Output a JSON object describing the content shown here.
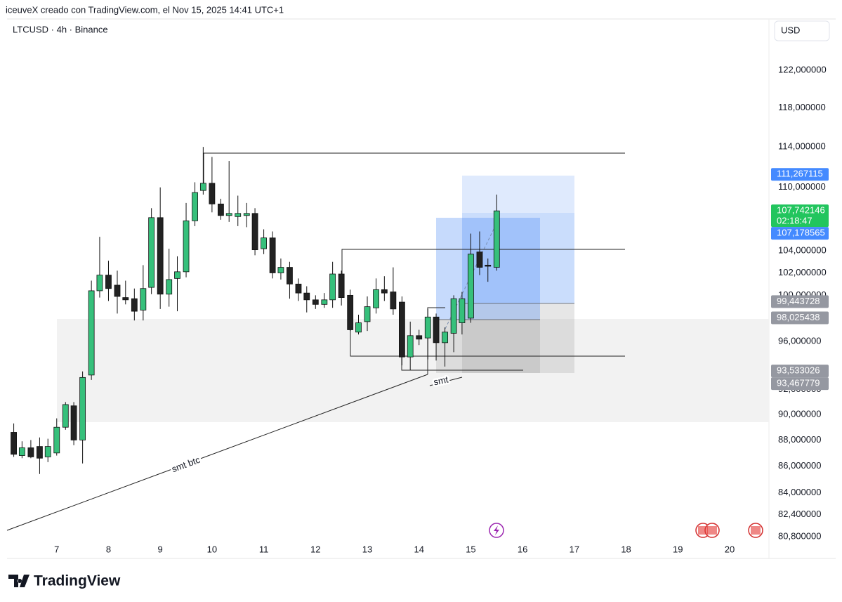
{
  "header": "iceuveX creado con TradingView.com, el Nov 15, 2025 14:41 UTC+1",
  "brand": "TradingView",
  "chart_data": {
    "type": "candlestick",
    "title": "LTCUSD · 4h · Binance",
    "currency": "USD",
    "up_color": "#36c07b",
    "down_color": "#222222",
    "log_scale": true,
    "grid": false,
    "x": [
      6.17,
      6.33,
      6.5,
      6.67,
      6.83,
      7,
      7.17,
      7.33,
      7.5,
      7.67,
      7.83,
      8,
      8.17,
      8.33,
      8.5,
      8.67,
      8.83,
      9,
      9.17,
      9.33,
      9.5,
      9.67,
      9.83,
      10,
      10.17,
      10.33,
      10.5,
      10.67,
      10.83,
      11,
      11.17,
      11.33,
      11.5,
      11.67,
      11.83,
      12,
      12.17,
      12.33,
      12.5,
      12.67,
      12.83,
      13,
      13.17,
      13.33,
      13.5,
      13.67,
      13.83,
      14,
      14.17,
      14.33,
      14.5,
      14.67,
      14.83,
      15,
      15.17,
      15.33,
      15.5
    ],
    "open": [
      88.6,
      86.8,
      87.4,
      87.5,
      86.7,
      87.0,
      89.0,
      90.7,
      88.0,
      93.2,
      100.4,
      101.8,
      100.9,
      99.8,
      99.7,
      98.7,
      100.7,
      107.1,
      100.1,
      101.5,
      102.1,
      106.8,
      109.7,
      110.4,
      108.4,
      107.3,
      107.2,
      107.3,
      107.5,
      104.2,
      105.2,
      102.0,
      102.5,
      101.0,
      100.2,
      99.6,
      99.2,
      99.6,
      101.9,
      100.0,
      96.8,
      97.7,
      98.9,
      100.5,
      100.3,
      99.4,
      94.7,
      96.5,
      96.3,
      98.1,
      95.9,
      96.7,
      97.6,
      98.0,
      103.9,
      102.7,
      102.5
    ],
    "high": [
      89.3,
      87.9,
      88.0,
      88.2,
      88.1,
      89.7,
      91.0,
      91.0,
      93.5,
      101.3,
      105.3,
      103.1,
      102.2,
      101.3,
      100.6,
      102.7,
      108.0,
      110.0,
      104.2,
      103.5,
      108.5,
      110.5,
      114.0,
      113.0,
      108.9,
      112.6,
      109.2,
      108.5,
      108.0,
      106.0,
      105.8,
      103.3,
      103.0,
      101.5,
      100.8,
      100.0,
      100.2,
      103.0,
      102.2,
      100.5,
      98.3,
      99.9,
      101.5,
      101.7,
      102.5,
      99.9,
      97.7,
      97.0,
      98.8,
      98.4,
      97.2,
      100.0,
      100.3,
      105.6,
      105.8,
      103.3,
      109.3
    ],
    "low": [
      86.7,
      86.6,
      86.6,
      85.4,
      86.3,
      86.8,
      88.8,
      87.6,
      86.2,
      92.8,
      99.8,
      99.5,
      98.4,
      99.2,
      97.8,
      97.8,
      100.1,
      98.8,
      99.0,
      98.6,
      101.6,
      106.3,
      109.3,
      107.6,
      106.9,
      106.7,
      106.3,
      106.2,
      103.6,
      103.7,
      101.5,
      101.4,
      99.7,
      99.5,
      98.5,
      98.8,
      98.9,
      98.9,
      99.1,
      96.9,
      96.6,
      96.9,
      98.4,
      99.5,
      98.3,
      94.0,
      93.6,
      95.7,
      94.5,
      94.4,
      93.9,
      95.1,
      96.6,
      97.6,
      101.8,
      101.2,
      102.2
    ],
    "close": [
      86.9,
      87.4,
      86.7,
      86.6,
      87.5,
      89.0,
      90.8,
      88.0,
      93.0,
      100.4,
      101.8,
      100.6,
      99.9,
      99.6,
      98.6,
      100.6,
      107.1,
      100.1,
      101.4,
      102.1,
      106.8,
      109.5,
      110.4,
      108.4,
      107.3,
      107.5,
      107.5,
      107.5,
      104.1,
      105.2,
      102.0,
      102.5,
      101.0,
      100.2,
      99.6,
      99.2,
      99.6,
      101.9,
      99.8,
      97.0,
      97.6,
      99.0,
      100.5,
      100.2,
      98.8,
      94.7,
      96.5,
      96.2,
      98.1,
      95.9,
      96.8,
      99.7,
      99.7,
      103.7,
      102.5,
      102.6,
      107.742146
    ],
    "xlim": [
      6.04,
      20.76
    ],
    "xticks": [
      7,
      8,
      9,
      10,
      11,
      12,
      13,
      14,
      15,
      16,
      17,
      18,
      19,
      20
    ],
    "ylim": [
      80.5,
      127.8
    ],
    "yticks": [
      {
        "value": 122,
        "label": "122,000000"
      },
      {
        "value": 118,
        "label": "118,000000"
      },
      {
        "value": 114,
        "label": "114,000000"
      },
      {
        "value": 110,
        "label": "110,000000"
      },
      {
        "value": 104,
        "label": "104,000000"
      },
      {
        "value": 102,
        "label": "102,000000"
      },
      {
        "value": 100,
        "label": "100,000000"
      },
      {
        "value": 96,
        "label": "96,000000"
      },
      {
        "value": 92,
        "label": "92,000000"
      },
      {
        "value": 90,
        "label": "90,000000"
      },
      {
        "value": 88,
        "label": "88,000000"
      },
      {
        "value": 86,
        "label": "86,000000"
      },
      {
        "value": 84,
        "label": "84,000000"
      },
      {
        "value": 82.4,
        "label": "82,400000"
      },
      {
        "value": 80.8,
        "label": "80,800000"
      }
    ],
    "price_labels": [
      {
        "value": 111.267115,
        "label": "111,267115",
        "color": "#448aff"
      },
      {
        "value": 107.742146,
        "label": "107,742146",
        "color": "#22c55e",
        "sub_label": "02:18:47"
      },
      {
        "value": 107.178565,
        "label": "107,178565",
        "color": "#448aff"
      },
      {
        "value": 99.443728,
        "label": "99,443728",
        "color": "#9598a1"
      },
      {
        "value": 98.025438,
        "label": "98,025438",
        "color": "#9598a1"
      },
      {
        "value": 93.533026,
        "label": "93,533026",
        "color": "#9598a1"
      },
      {
        "value": 93.467779,
        "label": "93,467779",
        "color": "#9598a1"
      }
    ],
    "annotations": [
      "smt btc",
      "smt"
    ]
  }
}
